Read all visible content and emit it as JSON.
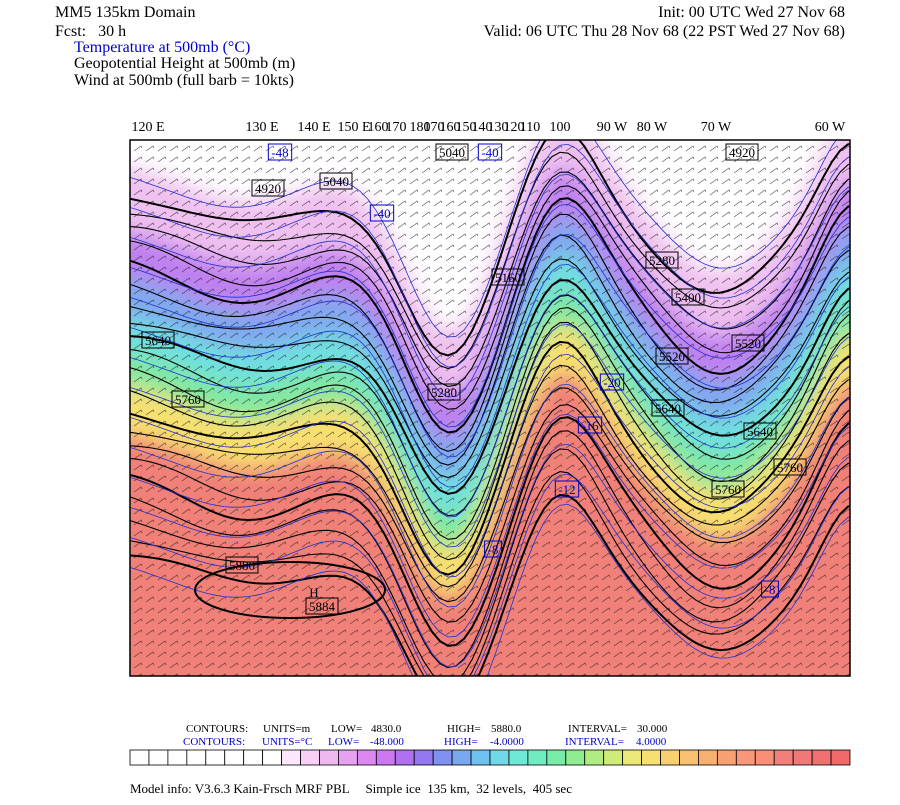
{
  "header": {
    "domain": "MM5 135km Domain",
    "fcst": "Fcst:   30 h",
    "init": "Init: 00 UTC Wed 27 Nov 68",
    "valid": "Valid: 06 UTC Thu 28 Nov 68 (22 PST Wed 27 Nov 68)",
    "fields": [
      "Temperature at 500mb (°C)",
      "Geopotential Height at 500mb (m)",
      "Wind at 500mb (full barb = 10kts)"
    ]
  },
  "map": {
    "longitudes": [
      "120 E",
      "130 E",
      "140 E",
      "150 E",
      "160",
      "170",
      "180",
      "170",
      "160",
      "150",
      "140",
      "130",
      "120",
      "110",
      "100",
      "90 W",
      "80 W",
      "70 W",
      "60 W"
    ],
    "height_labels": [
      "5640",
      "5760",
      "5880",
      "H",
      "5884",
      "4920",
      "5040",
      "5040",
      "5160",
      "5280",
      "5280",
      "5400",
      "5520",
      "5640",
      "5760",
      "5760",
      "5640",
      "5520",
      "4920"
    ],
    "temp_labels": [
      "-48",
      "-40",
      "-40",
      "-20",
      "-16",
      "-12",
      "-8",
      "-8"
    ]
  },
  "footer": {
    "height_contours": [
      "CONTOURS:",
      "UNITS=m",
      "LOW=",
      "4830.0",
      "HIGH=",
      "5880.0",
      "INTERVAL=",
      "30.000"
    ],
    "temp_contours": [
      "CONTOURS:",
      "UNITS=°C",
      "LOW=",
      "-48.000",
      "HIGH=",
      "-4.0000",
      "INTERVAL=",
      "4.0000"
    ],
    "colorbar": [
      "#ffffff",
      "#ffffff",
      "#ffffff",
      "#ffffff",
      "#ffffff",
      "#ffffff",
      "#ffffff",
      "#ffffff",
      "#fbe6fb",
      "#f6d0f6",
      "#f0b8f0",
      "#e8a0f0",
      "#dc88f0",
      "#cc78f0",
      "#b070f0",
      "#9478f0",
      "#8090f0",
      "#78a8f0",
      "#70c0f0",
      "#70d8e8",
      "#70e8d8",
      "#70ecc0",
      "#78eca8",
      "#90ec90",
      "#b0ec80",
      "#d0ec78",
      "#ece878",
      "#f8e070",
      "#f8d070",
      "#f8c070",
      "#f8b070",
      "#f8a070",
      "#f89878",
      "#f89078",
      "#f08078",
      "#f07878",
      "#f07070",
      "#f06868"
    ],
    "model_info": "Model info: V3.6.3 Kain-Frsch MRF PBL     Simple ice  135 km,  32 levels,  405 sec"
  }
}
